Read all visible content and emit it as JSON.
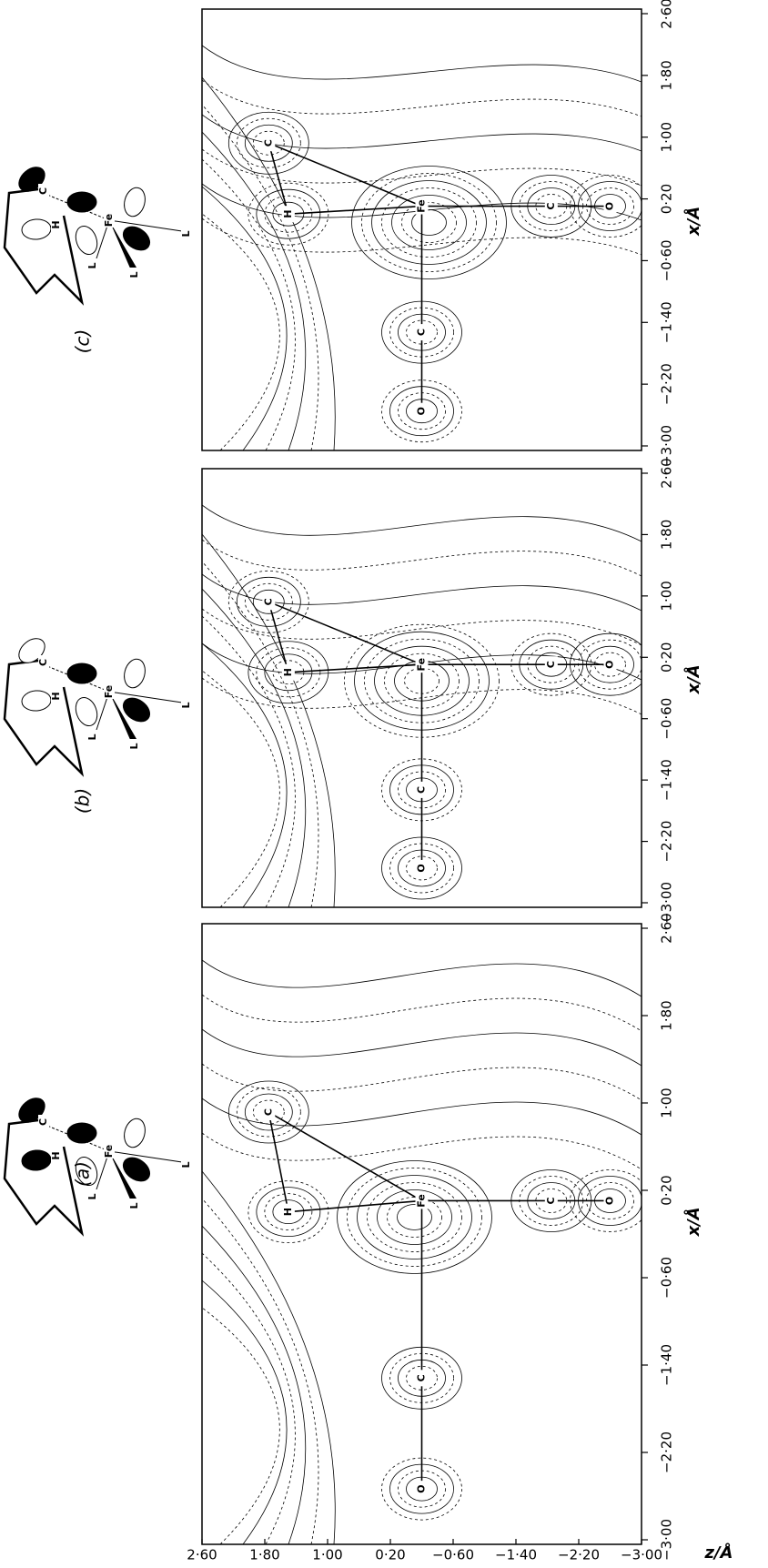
{
  "figure": {
    "z_axis_title": "z/Å",
    "z_ticks": [
      "2·60",
      "1·80",
      "1·00",
      "0·20",
      "−0·60",
      "−1·40",
      "−2·20",
      "−3·00"
    ]
  },
  "panels": [
    {
      "label": "(a)",
      "x_axis_title": "x/Å",
      "x_ticks": [
        "−3·00",
        "−2·20",
        "−1·40",
        "−0·60",
        "0·20",
        "1·00",
        "1·80",
        "2·60"
      ],
      "atoms": [
        "H",
        "C",
        "Fe",
        "C",
        "O",
        "C",
        "O"
      ],
      "diagram_labels": [
        "C",
        "H",
        "Fe",
        "L",
        "L",
        "L"
      ]
    },
    {
      "label": "(b)",
      "x_axis_title": "x/Å",
      "x_ticks": [
        "−3·00",
        "−2·20",
        "−1·40",
        "−0·60",
        "0·20",
        "1·00",
        "1·80",
        "2·60"
      ],
      "atoms": [
        "H",
        "C",
        "Fe",
        "C",
        "O",
        "C",
        "O"
      ],
      "diagram_labels": [
        "C",
        "H",
        "Fe",
        "L",
        "L",
        "L"
      ]
    },
    {
      "label": "(c)",
      "x_axis_title": "x/Å",
      "x_ticks": [
        "−3·00",
        "−2·20",
        "−1·40",
        "−0·60",
        "0·20",
        "1·00",
        "1·80",
        "2·60"
      ],
      "atoms": [
        "H",
        "C",
        "Fe",
        "C",
        "O",
        "C",
        "O"
      ],
      "diagram_labels": [
        "C",
        "H",
        "Fe",
        "L",
        "L",
        "L"
      ]
    }
  ]
}
